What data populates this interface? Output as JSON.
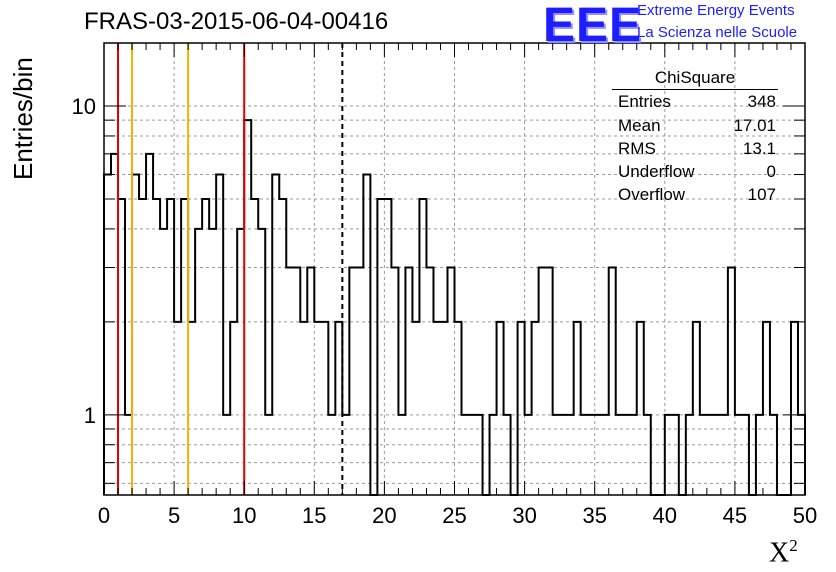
{
  "header": {
    "title": "FRAS-03-2015-06-04-00416",
    "logo_text": "EEE",
    "logo_line1": "Extreme Energy Events",
    "logo_line2": "La Scienza nelle Scuole"
  },
  "stats": {
    "title": "ChiSquare",
    "rows": [
      {
        "label": "Entries",
        "value": "348"
      },
      {
        "label": "Mean",
        "value": "17.01"
      },
      {
        "label": "RMS",
        "value": "13.1"
      },
      {
        "label": "Underflow",
        "value": "0"
      },
      {
        "label": "Overflow",
        "value": "107"
      }
    ]
  },
  "colors": {
    "histogram": "#000000",
    "red_marker": "#e00000",
    "yellow_marker": "#f0b400",
    "grid": "#9a9a9a",
    "logo": "#1d1dff"
  },
  "chart_data": {
    "type": "bar",
    "style": "step-histogram",
    "xlabel": "X²",
    "ylabel": "Entries/bin",
    "xlim": [
      0,
      50
    ],
    "ylim": [
      0.55,
      16
    ],
    "yscale": "log",
    "grid": true,
    "bin_width": 0.5,
    "x_ticks": [
      0,
      5,
      10,
      15,
      20,
      25,
      30,
      35,
      40,
      45,
      50
    ],
    "y_tick_labels": [
      {
        "value": 1,
        "label": "1"
      },
      {
        "value": 10,
        "label": "10"
      }
    ],
    "values": [
      6,
      7,
      5,
      1,
      6,
      5,
      7,
      5,
      4,
      5,
      2,
      5,
      2,
      4,
      5,
      4,
      6,
      1,
      2,
      4,
      9,
      5,
      4,
      1,
      6,
      5,
      3,
      3,
      2,
      3,
      2,
      2,
      1,
      2,
      1,
      3,
      3,
      6,
      0,
      5,
      5,
      3,
      1,
      3,
      2,
      5,
      3,
      2,
      2,
      3,
      2,
      1,
      1,
      1,
      0,
      1,
      2,
      1,
      0,
      2,
      1,
      2,
      3,
      3,
      1,
      1,
      1,
      2,
      1,
      1,
      1,
      1,
      3,
      1,
      1,
      1,
      2,
      1,
      0,
      0,
      1,
      1,
      0,
      1,
      2,
      1,
      1,
      1,
      1,
      3,
      1,
      1,
      0,
      1,
      2,
      1,
      0,
      0,
      2,
      1
    ],
    "vertical_lines": [
      {
        "x": 1,
        "color": "red",
        "style": "solid"
      },
      {
        "x": 2,
        "color": "yellow",
        "style": "solid"
      },
      {
        "x": 6,
        "color": "yellow",
        "style": "solid"
      },
      {
        "x": 10,
        "color": "red",
        "style": "solid"
      },
      {
        "x": 17,
        "color": "black",
        "style": "dashed"
      }
    ]
  }
}
